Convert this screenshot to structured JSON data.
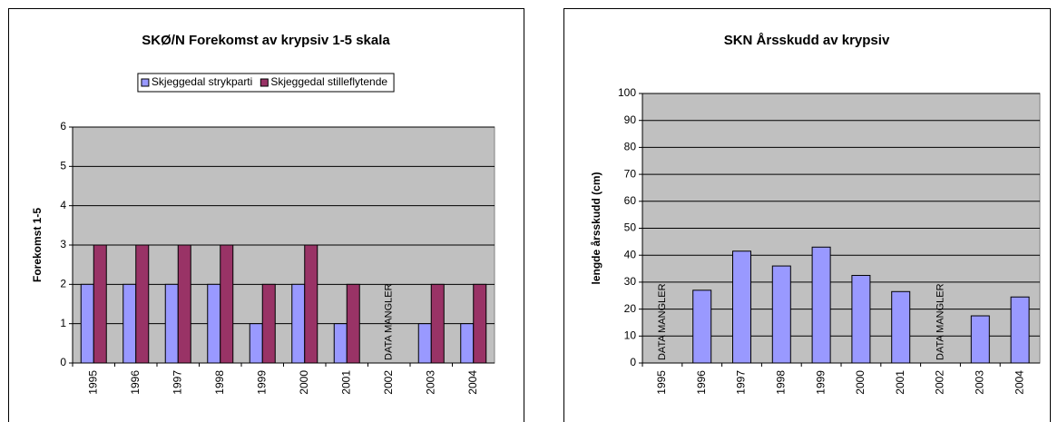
{
  "chart_data": [
    {
      "type": "bar",
      "title": "SKØ/N Forekomst av krypsiv 1-5 skala",
      "y_label": "Forekomst 1-5",
      "categories": [
        "1995",
        "1996",
        "1997",
        "1998",
        "1999",
        "2000",
        "2001",
        "2002",
        "2003",
        "2004"
      ],
      "series": [
        {
          "name": "Skjeggedal strykparti",
          "color": "#9999ff",
          "values": [
            2,
            2,
            2,
            2,
            1,
            2,
            1,
            null,
            1,
            1
          ]
        },
        {
          "name": "Skjeggedal stilleflytende",
          "color": "#993366",
          "values": [
            3,
            3,
            3,
            3,
            2,
            3,
            2,
            null,
            2,
            2
          ]
        }
      ],
      "annotations": [
        {
          "text": "DATA MANGLER",
          "category": "2002"
        }
      ],
      "ylim": [
        0,
        6
      ],
      "yticks": [
        0,
        1,
        2,
        3,
        4,
        5,
        6
      ],
      "grid": true,
      "legend": "top"
    },
    {
      "type": "bar",
      "title": "SKN Årsskudd av krypsiv",
      "y_label": "lengde årsskudd (cm)",
      "categories": [
        "1995",
        "1996",
        "1997",
        "1998",
        "1999",
        "2000",
        "2001",
        "2002",
        "2003",
        "2004"
      ],
      "series": [
        {
          "color": "#9999ff",
          "values": [
            null,
            27,
            41.5,
            36,
            43,
            32.5,
            26.5,
            null,
            17.5,
            24.5
          ]
        }
      ],
      "annotations": [
        {
          "text": "DATA MANGLER",
          "category": "1995"
        },
        {
          "text": "DATA MANGLER",
          "category": "2002"
        }
      ],
      "ylim": [
        0,
        100
      ],
      "yticks": [
        0,
        10,
        20,
        30,
        40,
        50,
        60,
        70,
        80,
        90,
        100
      ],
      "grid": true
    }
  ]
}
